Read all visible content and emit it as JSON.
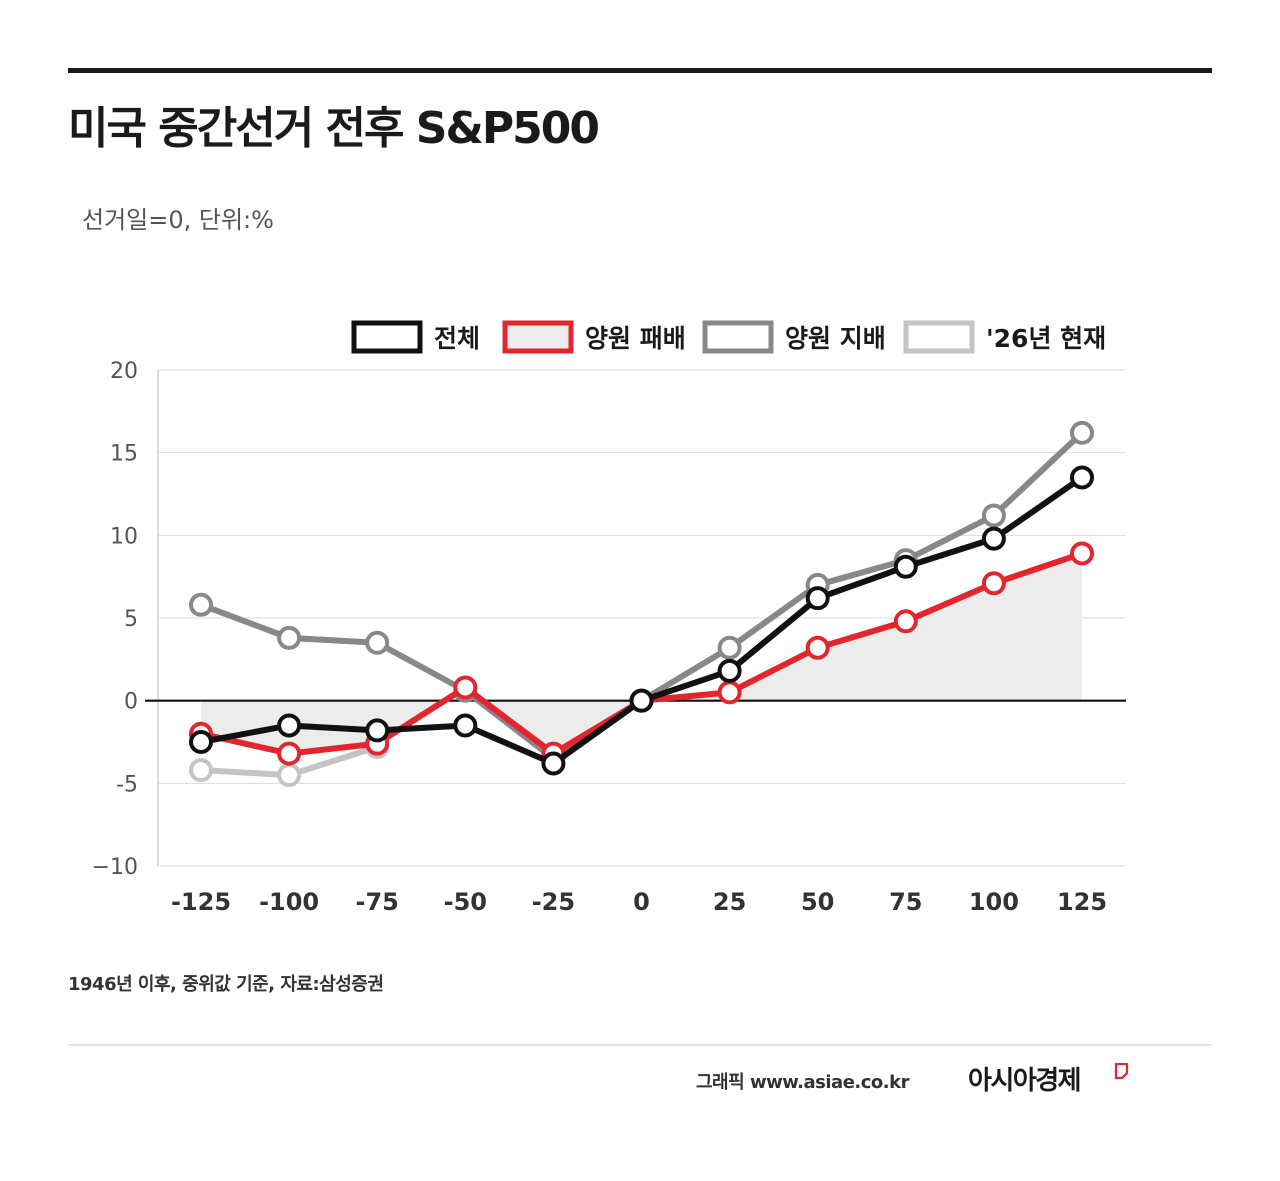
{
  "header": {
    "title": "미국 중간선거 전후 S&P500",
    "subtitle": "선거일=0, 단위:%"
  },
  "footer": {
    "note": "1946년 이후, 중위값 기준, 자료:삼성증권",
    "credit": "그래픽  www.asiae.co.kr",
    "brand": "아시아경제"
  },
  "colors": {
    "accent": "#e3262e",
    "brand": "#e3262e",
    "fill": "#ececec"
  },
  "chart_data": {
    "type": "line",
    "x": [
      -125,
      -100,
      -75,
      -50,
      -25,
      0,
      25,
      50,
      75,
      100,
      125
    ],
    "x_tick_labels": [
      "-125",
      "-100",
      "-75",
      "-50",
      "-25",
      "0",
      "25",
      "50",
      "75",
      "100",
      "125"
    ],
    "ylim": [
      -10,
      20
    ],
    "y_ticks": [
      -10,
      -5,
      0,
      5,
      10,
      15,
      20
    ],
    "y_tick_labels": [
      "−10",
      "-5",
      "0",
      "5",
      "10",
      "15",
      "20"
    ],
    "grid": true,
    "legend_position": "top-right",
    "series": [
      {
        "name": "전체",
        "color": "#111111",
        "values": [
          -2.5,
          -1.5,
          -1.8,
          -1.5,
          -3.8,
          0,
          1.8,
          6.2,
          8.1,
          9.8,
          13.5
        ]
      },
      {
        "name": "양원 패배",
        "color": "#e3262e",
        "area": true,
        "values": [
          -2.0,
          -3.2,
          -2.6,
          0.8,
          -3.2,
          0,
          0.5,
          3.2,
          4.8,
          7.1,
          8.9
        ]
      },
      {
        "name": "양원 지배",
        "color": "#888888",
        "values": [
          5.8,
          3.8,
          3.5,
          0.6,
          -3.5,
          0,
          3.2,
          7.0,
          8.5,
          11.2,
          16.2
        ]
      },
      {
        "name": "'26년 현재",
        "color": "#c4c4c4",
        "values": [
          -4.2,
          -4.5,
          -2.8,
          null,
          null,
          null,
          null,
          null,
          null,
          null,
          null
        ]
      }
    ]
  }
}
